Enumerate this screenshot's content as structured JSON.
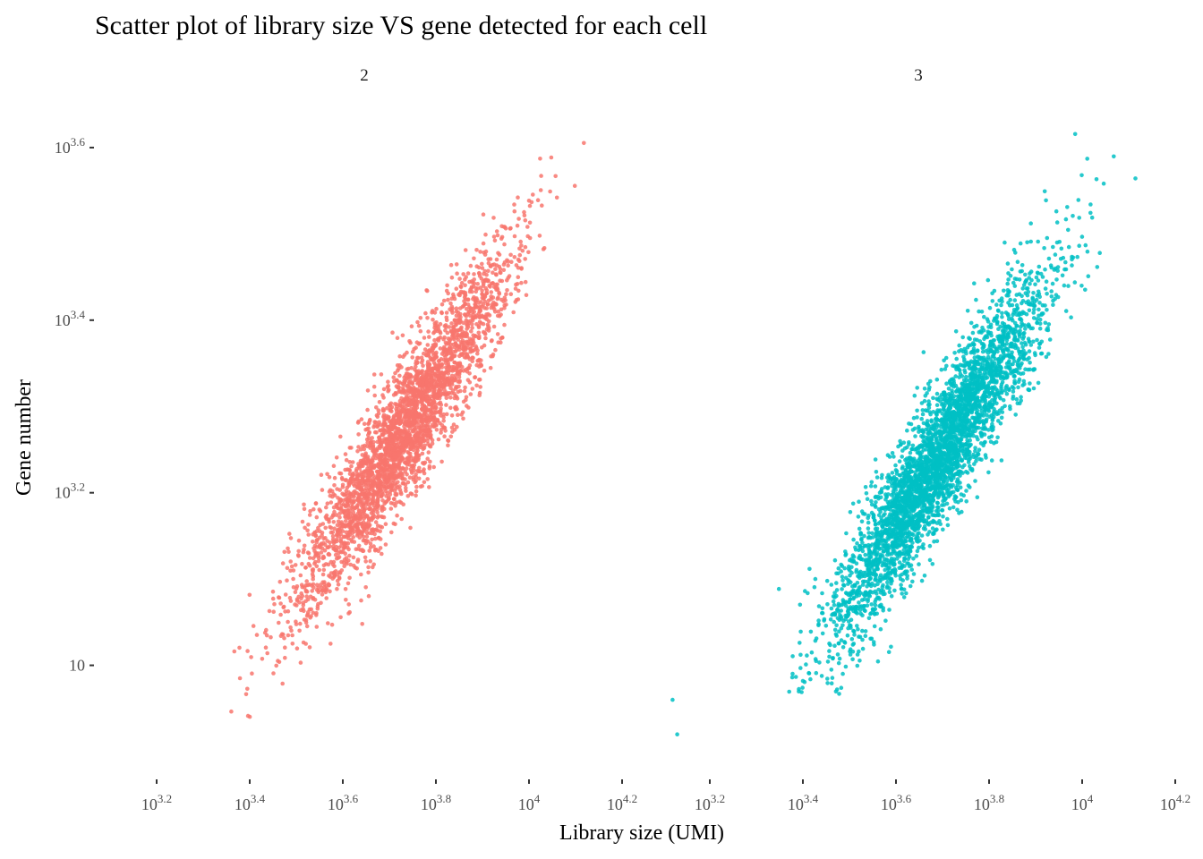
{
  "chart_data": {
    "type": "scatter",
    "title": "Scatter plot of library size VS gene detected for each cell",
    "xlabel": "Library size (UMI)",
    "ylabel": "Gene number",
    "x_scale": "log10",
    "y_scale": "log10",
    "xlim_log10": [
      3.2,
      4.2
    ],
    "ylim_log10": [
      2.9,
      3.63
    ],
    "x_ticks": [
      {
        "base": "10",
        "exp": "3.2",
        "value": 3.2
      },
      {
        "base": "10",
        "exp": "3.4",
        "value": 3.4
      },
      {
        "base": "10",
        "exp": "3.6",
        "value": 3.6
      },
      {
        "base": "10",
        "exp": "3.8",
        "value": 3.8
      },
      {
        "base": "10",
        "exp": "4",
        "value": 4.0
      },
      {
        "base": "10",
        "exp": "4.2",
        "value": 4.2
      }
    ],
    "y_ticks": [
      {
        "base": "10",
        "exp": "",
        "value": 3.0
      },
      {
        "base": "10",
        "exp": "3.2",
        "value": 3.2
      },
      {
        "base": "10",
        "exp": "3.4",
        "value": 3.4
      },
      {
        "base": "10",
        "exp": "3.6",
        "value": 3.6
      }
    ],
    "grid": false,
    "legend": "none",
    "facets": [
      {
        "label": "2",
        "color": "#F8766D",
        "n_points": 3200,
        "center_log10": {
          "x": 3.73,
          "y": 3.27
        },
        "x_range_log10": [
          3.27,
          4.17
        ],
        "y_range_log10": [
          2.93,
          3.63
        ]
      },
      {
        "label": "3",
        "color": "#00BFC4",
        "n_points": 3800,
        "center_log10": {
          "x": 3.69,
          "y": 3.24
        },
        "x_range_log10": [
          3.32,
          4.17
        ],
        "y_range_log10": [
          2.96,
          3.63
        ],
        "outliers_log10": [
          {
            "x": 3.12,
            "y": 2.96
          },
          {
            "x": 3.13,
            "y": 2.92
          }
        ]
      }
    ]
  }
}
